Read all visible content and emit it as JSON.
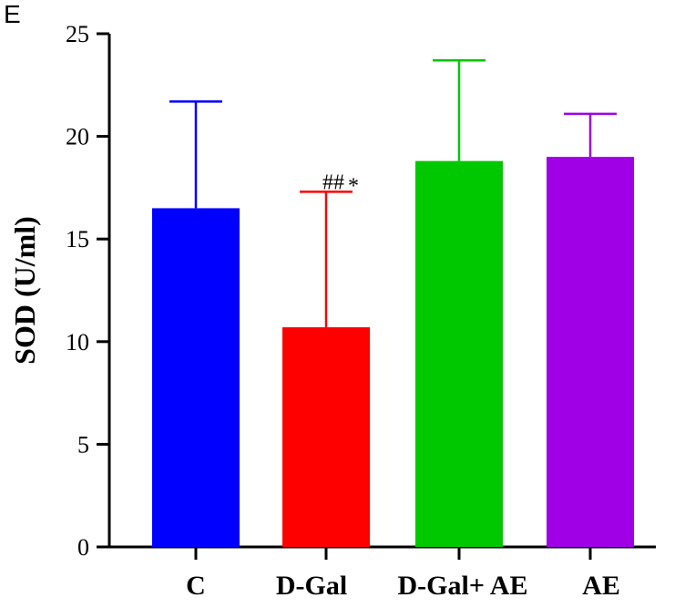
{
  "panel_label": "E",
  "chart_data": {
    "type": "bar",
    "title": "",
    "xlabel": "",
    "ylabel": "SOD (U/ml)",
    "ylim": [
      0,
      25
    ],
    "yticks": [
      0,
      5,
      10,
      15,
      20,
      25
    ],
    "grid": false,
    "categories": [
      "C",
      "D-Gal",
      "D-Gal+ AE",
      "AE"
    ],
    "values": [
      16.5,
      10.7,
      18.8,
      19.0
    ],
    "errors": [
      5.2,
      6.6,
      4.9,
      2.1
    ],
    "colors": [
      "#0000ff",
      "#ff0000",
      "#00c800",
      "#a000e6"
    ],
    "annotations": [
      {
        "category_index": 1,
        "text": "##",
        "suffix": "*"
      }
    ]
  }
}
